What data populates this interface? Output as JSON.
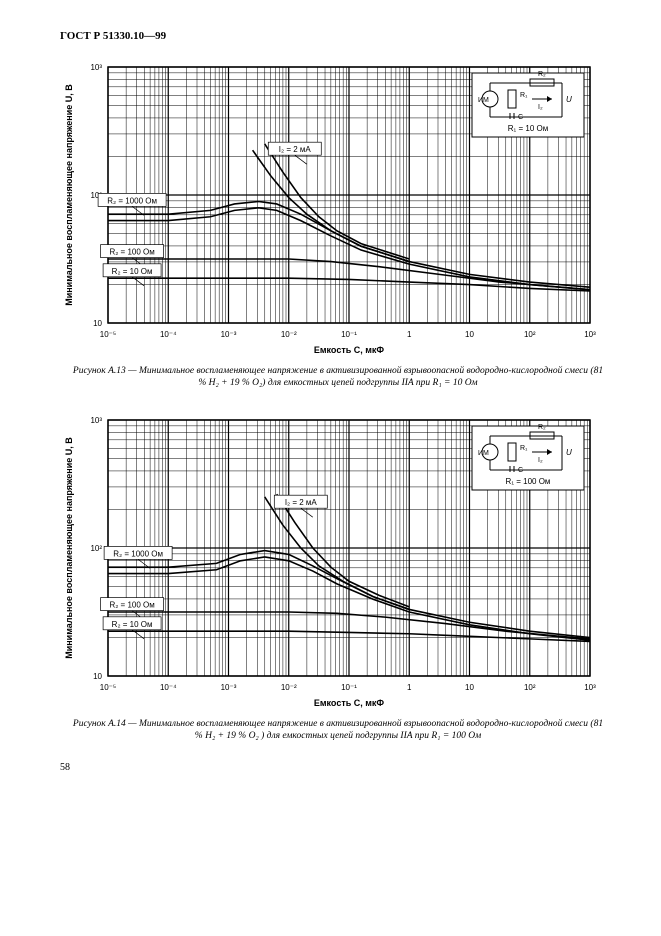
{
  "header": "ГОСТ Р 51330.10—99",
  "pagenum": "58",
  "charts": [
    {
      "type": "line-loglog",
      "xlabel": "Емкость C, мкФ",
      "ylabel": "Минимальное воспламеняющее напряжение U, В",
      "x_ticks": [
        "10⁻⁵",
        "10⁻⁴",
        "10⁻³",
        "10⁻²",
        "10⁻¹",
        "1",
        "10",
        "10²",
        "10³"
      ],
      "y_ticks": [
        "10",
        "10²",
        "10³"
      ],
      "x_exp_range": [
        -5,
        3
      ],
      "y_exp_range": [
        1,
        3
      ],
      "background_color": "#ffffff",
      "grid_color": "#000000",
      "line_color": "#000000",
      "line_width": 1.6,
      "label_fontsize": 9,
      "tick_fontsize": 8,
      "curve_labels": [
        {
          "text": "R₂ = 1000 Ом",
          "x": -4.6,
          "y": 1.95
        },
        {
          "text": "R₂ = 100 Ом",
          "x": -4.6,
          "y": 1.55
        },
        {
          "text": "R₂ = 10 Ом",
          "x": -4.6,
          "y": 1.4
        },
        {
          "text": "I₂ = 2 мА",
          "x": -1.9,
          "y": 2.35
        }
      ],
      "series": [
        {
          "name": "R2_1000",
          "pts": [
            [
              -5,
              1.85
            ],
            [
              -4,
              1.85
            ],
            [
              -3.3,
              1.88
            ],
            [
              -2.9,
              1.93
            ],
            [
              -2.5,
              1.95
            ],
            [
              -2.2,
              1.93
            ],
            [
              -1.8,
              1.85
            ],
            [
              -1.3,
              1.72
            ],
            [
              -0.8,
              1.6
            ],
            [
              0,
              1.48
            ],
            [
              1,
              1.38
            ],
            [
              2,
              1.32
            ],
            [
              3,
              1.28
            ]
          ]
        },
        {
          "name": "R2_1000b",
          "pts": [
            [
              -5,
              1.8
            ],
            [
              -4,
              1.8
            ],
            [
              -3.3,
              1.83
            ],
            [
              -2.9,
              1.88
            ],
            [
              -2.5,
              1.9
            ],
            [
              -2.2,
              1.88
            ],
            [
              -1.8,
              1.8
            ],
            [
              -1.3,
              1.68
            ],
            [
              -0.8,
              1.57
            ],
            [
              0,
              1.46
            ],
            [
              1,
              1.36
            ],
            [
              2,
              1.3
            ],
            [
              3,
              1.26
            ]
          ]
        },
        {
          "name": "R2_100",
          "pts": [
            [
              -5,
              1.5
            ],
            [
              -4,
              1.5
            ],
            [
              -3,
              1.5
            ],
            [
              -2,
              1.5
            ],
            [
              -1.3,
              1.48
            ],
            [
              -0.5,
              1.44
            ],
            [
              0.5,
              1.38
            ],
            [
              1.5,
              1.32
            ],
            [
              2.5,
              1.28
            ],
            [
              3,
              1.26
            ]
          ]
        },
        {
          "name": "R2_10",
          "pts": [
            [
              -5,
              1.35
            ],
            [
              -4,
              1.35
            ],
            [
              -3,
              1.35
            ],
            [
              -2,
              1.35
            ],
            [
              -1,
              1.34
            ],
            [
              0,
              1.32
            ],
            [
              1,
              1.3
            ],
            [
              2,
              1.27
            ],
            [
              3,
              1.25
            ]
          ]
        },
        {
          "name": "I2_2mA",
          "pts": [
            [
              -2.6,
              2.35
            ],
            [
              -2.3,
              2.15
            ],
            [
              -2.0,
              1.98
            ],
            [
              -1.7,
              1.85
            ],
            [
              -1.3,
              1.72
            ],
            [
              -0.8,
              1.6
            ],
            [
              0,
              1.48
            ]
          ]
        },
        {
          "name": "I2_2mA_b",
          "pts": [
            [
              -2.4,
              2.4
            ],
            [
              -2.1,
              2.18
            ],
            [
              -1.8,
              1.98
            ],
            [
              -1.5,
              1.83
            ],
            [
              -1.2,
              1.72
            ],
            [
              -0.8,
              1.62
            ],
            [
              0,
              1.5
            ]
          ]
        }
      ],
      "inset": {
        "label_im": "ИМ",
        "label_r1": "R₁",
        "label_r2": "R₂",
        "label_i2": "I₂",
        "label_c": "C",
        "label_u": "U",
        "note": "R₁ = 10 Ом"
      },
      "caption": "Рисунок А.13 — Минимальное воспламеняющее напряжение в активизированной взрывоопасной водородно-кислородной смеси (81 % H₂  +  19 % O₂) для емкостных цепей подгруппы IIA при R₁ = 10 Ом"
    },
    {
      "type": "line-loglog",
      "xlabel": "Емкость C, мкФ",
      "ylabel": "Минимальное воспламеняющее напряжение U, В",
      "x_ticks": [
        "10⁻⁵",
        "10⁻⁴",
        "10⁻³",
        "10⁻²",
        "10⁻¹",
        "1",
        "10",
        "10²",
        "10³"
      ],
      "y_ticks": [
        "10",
        "10²",
        "10³"
      ],
      "x_exp_range": [
        -5,
        3
      ],
      "y_exp_range": [
        1,
        3
      ],
      "background_color": "#ffffff",
      "grid_color": "#000000",
      "line_color": "#000000",
      "line_width": 1.6,
      "label_fontsize": 9,
      "tick_fontsize": 8,
      "curve_labels": [
        {
          "text": "R₂ = 1000 Ом",
          "x": -4.5,
          "y": 1.95
        },
        {
          "text": "R₂ = 100 Ом",
          "x": -4.6,
          "y": 1.55
        },
        {
          "text": "R₂ = 10 Ом",
          "x": -4.6,
          "y": 1.4
        },
        {
          "text": "I₂ = 2 мА",
          "x": -1.8,
          "y": 2.35
        }
      ],
      "series": [
        {
          "name": "R2_1000",
          "pts": [
            [
              -5,
              1.85
            ],
            [
              -4,
              1.85
            ],
            [
              -3.2,
              1.88
            ],
            [
              -2.8,
              1.95
            ],
            [
              -2.4,
              1.98
            ],
            [
              -2.0,
              1.95
            ],
            [
              -1.6,
              1.86
            ],
            [
              -1.2,
              1.76
            ],
            [
              -0.6,
              1.62
            ],
            [
              0,
              1.52
            ],
            [
              1,
              1.42
            ],
            [
              2,
              1.35
            ],
            [
              3,
              1.3
            ]
          ]
        },
        {
          "name": "R2_1000b",
          "pts": [
            [
              -5,
              1.8
            ],
            [
              -4,
              1.8
            ],
            [
              -3.2,
              1.83
            ],
            [
              -2.8,
              1.9
            ],
            [
              -2.4,
              1.93
            ],
            [
              -2.0,
              1.9
            ],
            [
              -1.6,
              1.82
            ],
            [
              -1.2,
              1.72
            ],
            [
              -0.6,
              1.6
            ],
            [
              0,
              1.5
            ],
            [
              1,
              1.4
            ],
            [
              2,
              1.33
            ],
            [
              3,
              1.28
            ]
          ]
        },
        {
          "name": "R2_100",
          "pts": [
            [
              -5,
              1.5
            ],
            [
              -4,
              1.5
            ],
            [
              -3,
              1.5
            ],
            [
              -2,
              1.5
            ],
            [
              -1.2,
              1.49
            ],
            [
              -0.4,
              1.46
            ],
            [
              0.6,
              1.41
            ],
            [
              1.6,
              1.35
            ],
            [
              2.5,
              1.31
            ],
            [
              3,
              1.29
            ]
          ]
        },
        {
          "name": "R2_10",
          "pts": [
            [
              -5,
              1.35
            ],
            [
              -4,
              1.35
            ],
            [
              -3,
              1.35
            ],
            [
              -2,
              1.35
            ],
            [
              -1,
              1.34
            ],
            [
              0,
              1.33
            ],
            [
              1,
              1.31
            ],
            [
              2,
              1.29
            ],
            [
              3,
              1.27
            ]
          ]
        },
        {
          "name": "I2_2mA",
          "pts": [
            [
              -2.4,
              2.4
            ],
            [
              -2.1,
              2.18
            ],
            [
              -1.8,
              2.0
            ],
            [
              -1.5,
              1.86
            ],
            [
              -1.1,
              1.74
            ],
            [
              -0.6,
              1.62
            ],
            [
              0,
              1.52
            ]
          ]
        },
        {
          "name": "I2_2mA_b",
          "pts": [
            [
              -2.2,
              2.42
            ],
            [
              -1.9,
              2.2
            ],
            [
              -1.6,
              2.0
            ],
            [
              -1.3,
              1.85
            ],
            [
              -1.0,
              1.74
            ],
            [
              -0.5,
              1.63
            ],
            [
              0,
              1.54
            ]
          ]
        }
      ],
      "inset": {
        "label_im": "ИМ",
        "label_r1": "R₁",
        "label_r2": "R₂",
        "label_i2": "I₂",
        "label_c": "C",
        "label_u": "U",
        "note": "R₁ = 100 Ом"
      },
      "caption": "Рисунок А.14 — Минимальное воспламеняющее напряжение в активизированной взрывоопасной водородно-кислородной смеси (81 % H₂  +  19 % O₂ ) для емкостных цепей подгруппы IIA при R₁ = 100 Ом"
    }
  ]
}
